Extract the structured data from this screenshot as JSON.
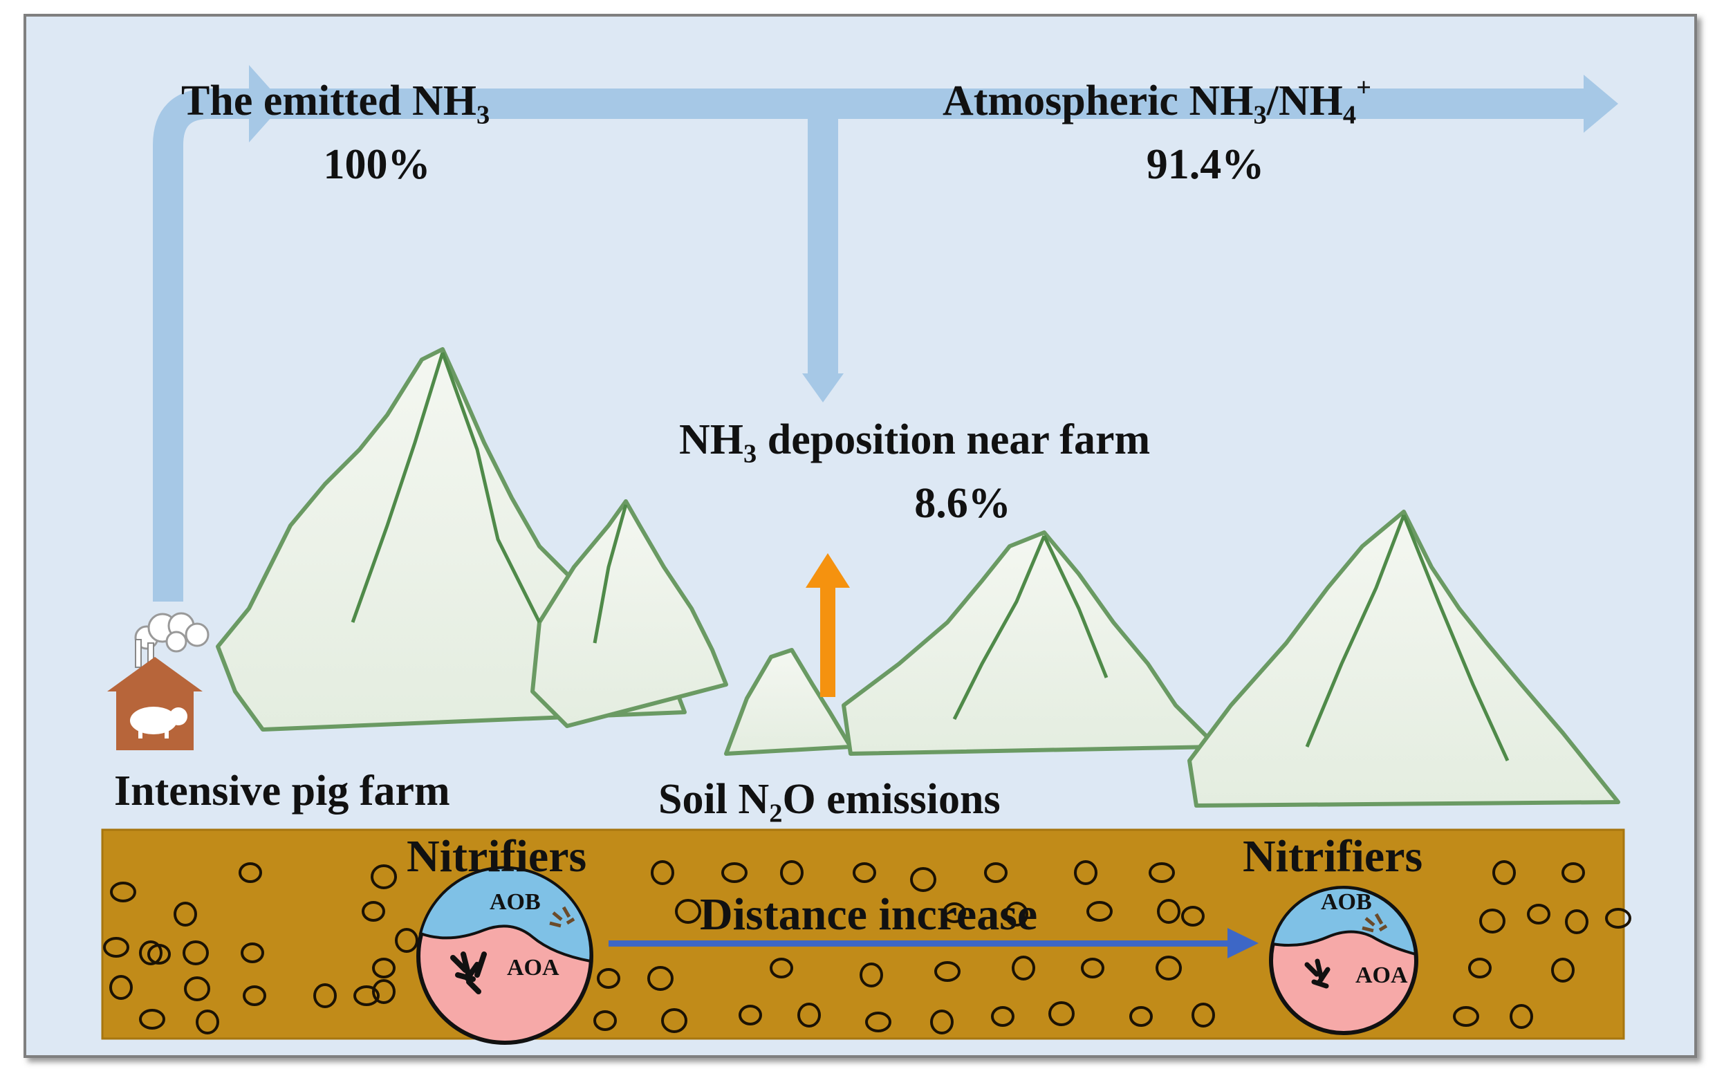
{
  "flows": {
    "emitted": {
      "label": "The emitted NH",
      "sub": "3",
      "percent": "100%"
    },
    "atmospheric": {
      "label_a": "Atmospheric NH",
      "sub_a": "3",
      "label_b": "/NH",
      "sub_b": "4",
      "sup_b": "+",
      "percent": "91.4%"
    },
    "deposition": {
      "label_a": "NH",
      "sub_a": "3",
      "label_b": " deposition near farm",
      "percent": "8.6%"
    }
  },
  "farm": {
    "label": "Intensive pig farm"
  },
  "soil": {
    "label_a": "Soil N",
    "sub_a": "2",
    "label_b": "O emissions"
  },
  "soil_band": {
    "left_nitrifiers": "Nitrifiers",
    "right_nitrifiers": "Nitrifiers",
    "distance": "Distance increase",
    "aob": "AOB",
    "aoa": "AOA"
  },
  "colors": {
    "background": "#dde8f4",
    "flow_arrow": "#a6c8e6",
    "soil": "#c18b19",
    "aob": "#7fc1e6",
    "aoa": "#f6a9a8",
    "orange_arrow": "#f5920f",
    "distance_arrow": "#3d67c6",
    "farm": "#b7653a"
  }
}
